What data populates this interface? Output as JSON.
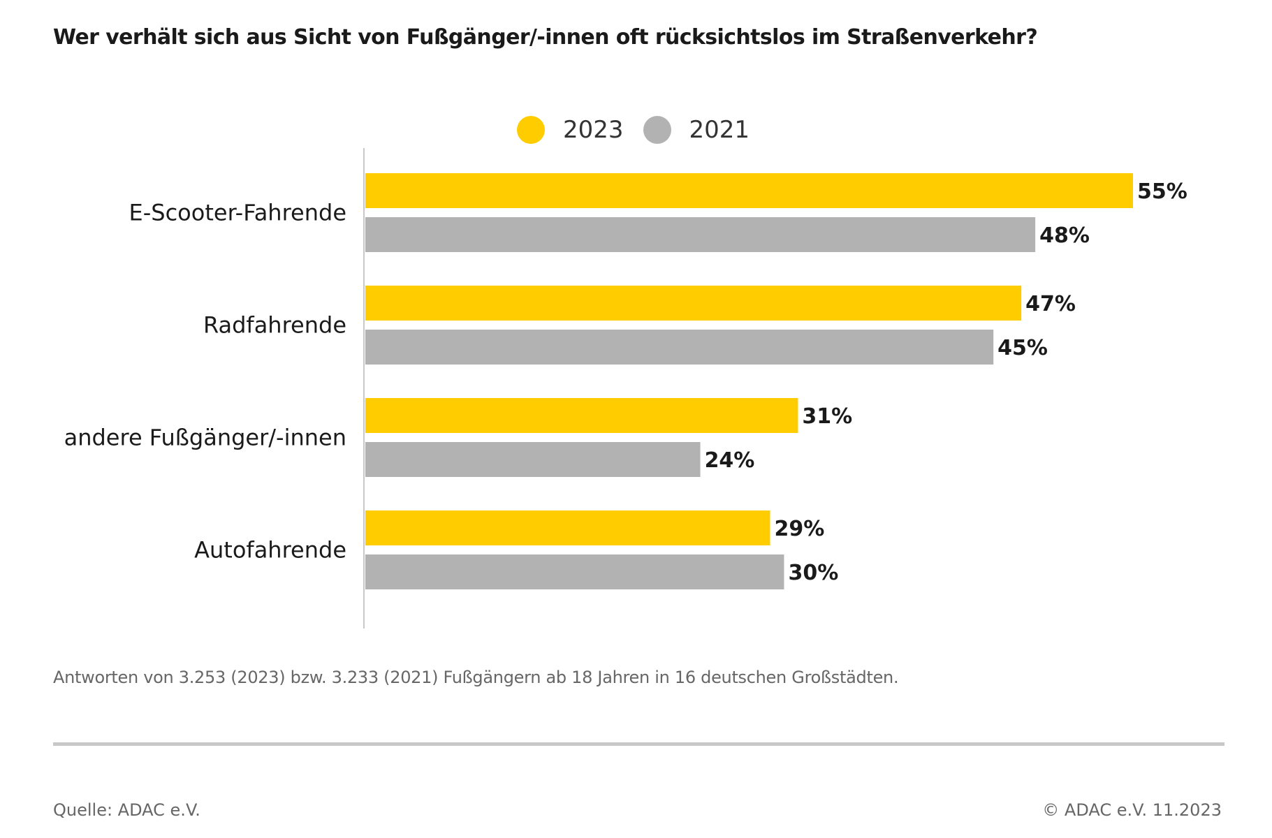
{
  "chart_data": {
    "type": "bar",
    "orientation": "horizontal",
    "title": "Wer verhält sich aus Sicht von Fußgänger/-innen oft rücksichtslos im Straßenverkehr?",
    "categories": [
      "E-Scooter-Fahrende",
      "Radfahrende",
      "andere Fußgänger/-innen",
      "Autofahrende"
    ],
    "series": [
      {
        "name": "2023",
        "color": "#FFCC00",
        "values": [
          55,
          47,
          31,
          29
        ],
        "labels": [
          "55%",
          "47%",
          "31%",
          "29%"
        ]
      },
      {
        "name": "2021",
        "color": "#B2B2B2",
        "values": [
          48,
          45,
          24,
          30
        ],
        "labels": [
          "48%",
          "45%",
          "24%",
          "30%"
        ]
      }
    ],
    "unit": "%",
    "xlim": [
      0,
      55
    ],
    "grid": false,
    "legend_position": "top-center",
    "xlabel": "",
    "ylabel": ""
  },
  "header": {
    "title": "Wer verhält sich aus Sicht von Fußgänger/-innen oft rücksichtslos im Straßenverkehr?"
  },
  "legend": [
    {
      "label": "2023",
      "color": "#FFCC00"
    },
    {
      "label": "2021",
      "color": "#B2B2B2"
    }
  ],
  "footer": {
    "note": "Antworten von 3.253 (2023) bzw. 3.233 (2021) Fußgängern ab 18 Jahren in 16 deutschen Großstädten.",
    "source": "Quelle: ADAC e.V.",
    "copyright": "© ADAC e.V. 11.2023"
  }
}
